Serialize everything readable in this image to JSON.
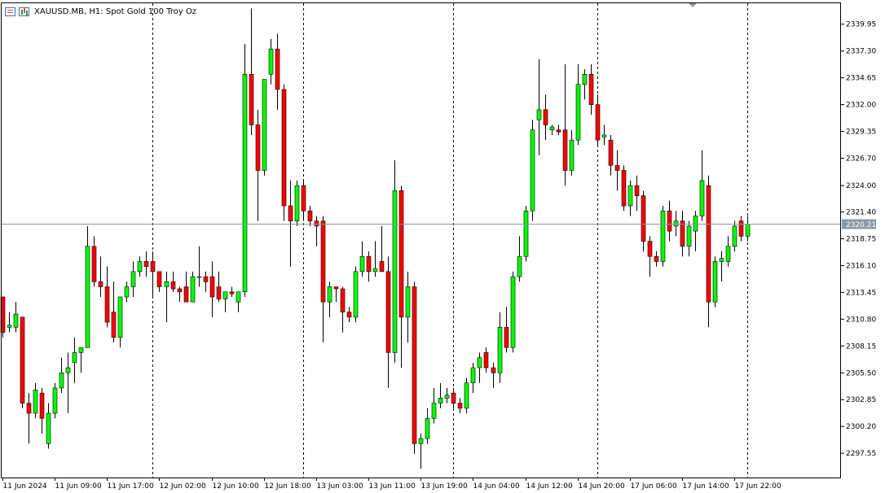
{
  "window": {
    "symbol": "XAUUSD.MB, H1:",
    "description": "Spot Gold 100 Troy Oz",
    "current_price_label": "2320.21",
    "icons": [
      "chart-menu-icon",
      "candle-bars-icon",
      "scroll-marker-icon"
    ]
  },
  "colors": {
    "bull": "#00ff00",
    "bear": "#ff0000",
    "wick": "#000000",
    "background": "#ffffff",
    "price_line": "#8a98a6",
    "price_label_bg": "#8a98a6"
  },
  "chart_data": {
    "type": "candlestick",
    "title": "",
    "xlabel": "",
    "ylabel": "",
    "ylim": [
      2295.15,
      2342.1
    ],
    "current_price": 2320.21,
    "grid": false,
    "period_separators": true,
    "y_ticks": [
      "2339.95",
      "2337.30",
      "2334.65",
      "2332.00",
      "2329.35",
      "2326.70",
      "2324.00",
      "2321.40",
      "2318.75",
      "2316.10",
      "2313.45",
      "2310.80",
      "2308.15",
      "2305.50",
      "2302.85",
      "2300.20",
      "2297.55"
    ],
    "x_ticks": [
      {
        "index": 0,
        "label": "11 Jun 2024"
      },
      {
        "index": 8,
        "label": "11 Jun 09:00"
      },
      {
        "index": 16,
        "label": "11 Jun 17:00"
      },
      {
        "index": 24,
        "label": "12 Jun 02:00"
      },
      {
        "index": 32,
        "label": "12 Jun 10:00"
      },
      {
        "index": 40,
        "label": "12 Jun 18:00"
      },
      {
        "index": 48,
        "label": "13 Jun 03:00"
      },
      {
        "index": 56,
        "label": "13 Jun 11:00"
      },
      {
        "index": 64,
        "label": "13 Jun 19:00"
      },
      {
        "index": 72,
        "label": "14 Jun 04:00"
      },
      {
        "index": 80,
        "label": "14 Jun 12:00"
      },
      {
        "index": 88,
        "label": "14 Jun 20:00"
      },
      {
        "index": 96,
        "label": "17 Jun 06:00"
      },
      {
        "index": 104,
        "label": "17 Jun 14:00"
      },
      {
        "index": 112,
        "label": "17 Jun 22:00"
      }
    ],
    "separators_at": [
      23,
      46,
      69,
      91,
      114
    ],
    "candles": [
      {
        "o": 2313.0,
        "h": 2313.0,
        "l": 2309.0,
        "c": 2309.5
      },
      {
        "o": 2310.0,
        "h": 2311.5,
        "l": 2309.5,
        "c": 2310.2
      },
      {
        "o": 2310.0,
        "h": 2312.5,
        "l": 2309.5,
        "c": 2311.3
      },
      {
        "o": 2311.0,
        "h": 2311.0,
        "l": 2302.0,
        "c": 2302.5
      },
      {
        "o": 2302.5,
        "h": 2303.5,
        "l": 2298.5,
        "c": 2301.5
      },
      {
        "o": 2301.5,
        "h": 2304.5,
        "l": 2301.0,
        "c": 2303.8
      },
      {
        "o": 2303.5,
        "h": 2304.0,
        "l": 2299.5,
        "c": 2301.0
      },
      {
        "o": 2298.5,
        "h": 2302.5,
        "l": 2298.0,
        "c": 2301.5
      },
      {
        "o": 2301.5,
        "h": 2304.5,
        "l": 2301.0,
        "c": 2304.0
      },
      {
        "o": 2304.0,
        "h": 2307.0,
        "l": 2303.5,
        "c": 2305.5
      },
      {
        "o": 2305.5,
        "h": 2307.5,
        "l": 2301.5,
        "c": 2306.0
      },
      {
        "o": 2306.5,
        "h": 2309.0,
        "l": 2304.5,
        "c": 2307.5
      },
      {
        "o": 2307.5,
        "h": 2308.0,
        "l": 2305.5,
        "c": 2308.0
      },
      {
        "o": 2308.0,
        "h": 2320.0,
        "l": 2308.0,
        "c": 2318.0
      },
      {
        "o": 2318.0,
        "h": 2319.0,
        "l": 2314.0,
        "c": 2314.5
      },
      {
        "o": 2314.5,
        "h": 2317.0,
        "l": 2313.0,
        "c": 2314.0
      },
      {
        "o": 2314.0,
        "h": 2316.0,
        "l": 2310.0,
        "c": 2310.5
      },
      {
        "o": 2311.5,
        "h": 2314.5,
        "l": 2308.5,
        "c": 2309.0
      },
      {
        "o": 2309.0,
        "h": 2313.0,
        "l": 2308.0,
        "c": 2313.0
      },
      {
        "o": 2313.0,
        "h": 2314.5,
        "l": 2312.5,
        "c": 2314.0
      },
      {
        "o": 2314.0,
        "h": 2316.5,
        "l": 2313.0,
        "c": 2315.5
      },
      {
        "o": 2315.5,
        "h": 2317.0,
        "l": 2315.0,
        "c": 2316.5
      },
      {
        "o": 2316.5,
        "h": 2317.5,
        "l": 2315.0,
        "c": 2316.0
      },
      {
        "o": 2316.5,
        "h": 2317.5,
        "l": 2313.0,
        "c": 2315.5
      },
      {
        "o": 2315.5,
        "h": 2315.5,
        "l": 2313.5,
        "c": 2314.0
      },
      {
        "o": 2314.0,
        "h": 2315.5,
        "l": 2310.5,
        "c": 2314.5
      },
      {
        "o": 2314.5,
        "h": 2315.5,
        "l": 2313.5,
        "c": 2313.8
      },
      {
        "o": 2313.8,
        "h": 2314.0,
        "l": 2312.5,
        "c": 2313.5
      },
      {
        "o": 2314.0,
        "h": 2315.5,
        "l": 2312.5,
        "c": 2312.5
      },
      {
        "o": 2312.5,
        "h": 2315.5,
        "l": 2312.5,
        "c": 2315.0
      },
      {
        "o": 2315.0,
        "h": 2318.0,
        "l": 2314.0,
        "c": 2315.0
      },
      {
        "o": 2315.0,
        "h": 2315.5,
        "l": 2313.5,
        "c": 2314.5
      },
      {
        "o": 2315.0,
        "h": 2316.5,
        "l": 2311.0,
        "c": 2313.0
      },
      {
        "o": 2314.0,
        "h": 2315.5,
        "l": 2312.5,
        "c": 2312.8
      },
      {
        "o": 2312.8,
        "h": 2313.5,
        "l": 2311.5,
        "c": 2313.5
      },
      {
        "o": 2313.5,
        "h": 2314.0,
        "l": 2313.0,
        "c": 2313.3
      },
      {
        "o": 2312.5,
        "h": 2313.5,
        "l": 2311.5,
        "c": 2313.5
      },
      {
        "o": 2313.5,
        "h": 2338.0,
        "l": 2313.0,
        "c": 2335.0
      },
      {
        "o": 2335.0,
        "h": 2341.5,
        "l": 2329.0,
        "c": 2330.0
      },
      {
        "o": 2330.0,
        "h": 2331.5,
        "l": 2320.5,
        "c": 2325.5
      },
      {
        "o": 2325.5,
        "h": 2334.5,
        "l": 2325.0,
        "c": 2334.5
      },
      {
        "o": 2335.0,
        "h": 2338.5,
        "l": 2334.0,
        "c": 2337.5
      },
      {
        "o": 2337.5,
        "h": 2339.0,
        "l": 2331.5,
        "c": 2333.5
      },
      {
        "o": 2333.5,
        "h": 2334.0,
        "l": 2320.5,
        "c": 2322.0
      },
      {
        "o": 2322.0,
        "h": 2324.5,
        "l": 2316.0,
        "c": 2320.5
      },
      {
        "o": 2320.5,
        "h": 2324.5,
        "l": 2320.0,
        "c": 2324.0
      },
      {
        "o": 2324.0,
        "h": 2324.5,
        "l": 2320.5,
        "c": 2321.5
      },
      {
        "o": 2321.5,
        "h": 2322.0,
        "l": 2320.0,
        "c": 2320.5
      },
      {
        "o": 2320.5,
        "h": 2321.0,
        "l": 2318.0,
        "c": 2320.0
      },
      {
        "o": 2320.5,
        "h": 2321.0,
        "l": 2308.5,
        "c": 2312.5
      },
      {
        "o": 2312.5,
        "h": 2314.5,
        "l": 2311.0,
        "c": 2314.0
      },
      {
        "o": 2314.0,
        "h": 2314.0,
        "l": 2312.5,
        "c": 2313.8
      },
      {
        "o": 2313.8,
        "h": 2314.0,
        "l": 2309.5,
        "c": 2311.5
      },
      {
        "o": 2311.5,
        "h": 2312.0,
        "l": 2310.5,
        "c": 2311.0
      },
      {
        "o": 2311.0,
        "h": 2316.0,
        "l": 2310.5,
        "c": 2315.5
      },
      {
        "o": 2315.5,
        "h": 2318.5,
        "l": 2315.0,
        "c": 2317.0
      },
      {
        "o": 2317.0,
        "h": 2317.5,
        "l": 2314.5,
        "c": 2315.5
      },
      {
        "o": 2315.5,
        "h": 2318.5,
        "l": 2315.0,
        "c": 2315.8
      },
      {
        "o": 2316.5,
        "h": 2320.0,
        "l": 2315.5,
        "c": 2315.5
      },
      {
        "o": 2315.5,
        "h": 2317.0,
        "l": 2304.0,
        "c": 2307.5
      },
      {
        "o": 2307.5,
        "h": 2326.5,
        "l": 2306.5,
        "c": 2323.5
      },
      {
        "o": 2323.5,
        "h": 2324.0,
        "l": 2306.0,
        "c": 2311.0
      },
      {
        "o": 2311.0,
        "h": 2315.5,
        "l": 2308.5,
        "c": 2314.0
      },
      {
        "o": 2314.0,
        "h": 2314.5,
        "l": 2297.5,
        "c": 2298.5
      },
      {
        "o": 2298.5,
        "h": 2299.5,
        "l": 2296.0,
        "c": 2299.0
      },
      {
        "o": 2299.0,
        "h": 2302.0,
        "l": 2298.5,
        "c": 2301.0
      },
      {
        "o": 2301.0,
        "h": 2304.0,
        "l": 2300.5,
        "c": 2302.5
      },
      {
        "o": 2302.5,
        "h": 2304.5,
        "l": 2302.0,
        "c": 2303.0
      },
      {
        "o": 2303.0,
        "h": 2304.0,
        "l": 2302.5,
        "c": 2303.3
      },
      {
        "o": 2303.5,
        "h": 2304.0,
        "l": 2302.0,
        "c": 2302.5
      },
      {
        "o": 2302.5,
        "h": 2303.0,
        "l": 2301.5,
        "c": 2302.0
      },
      {
        "o": 2302.0,
        "h": 2305.0,
        "l": 2301.5,
        "c": 2304.5
      },
      {
        "o": 2304.5,
        "h": 2306.5,
        "l": 2303.5,
        "c": 2306.0
      },
      {
        "o": 2306.0,
        "h": 2307.5,
        "l": 2304.5,
        "c": 2307.0
      },
      {
        "o": 2307.5,
        "h": 2308.0,
        "l": 2305.5,
        "c": 2306.0
      },
      {
        "o": 2306.0,
        "h": 2306.5,
        "l": 2304.0,
        "c": 2305.5
      },
      {
        "o": 2305.5,
        "h": 2311.5,
        "l": 2304.5,
        "c": 2310.0
      },
      {
        "o": 2310.0,
        "h": 2312.0,
        "l": 2307.5,
        "c": 2308.0
      },
      {
        "o": 2308.0,
        "h": 2315.5,
        "l": 2307.5,
        "c": 2315.0
      },
      {
        "o": 2315.0,
        "h": 2319.0,
        "l": 2314.5,
        "c": 2317.0
      },
      {
        "o": 2317.0,
        "h": 2322.0,
        "l": 2316.5,
        "c": 2321.5
      },
      {
        "o": 2321.5,
        "h": 2330.5,
        "l": 2320.5,
        "c": 2329.5
      },
      {
        "o": 2330.5,
        "h": 2336.5,
        "l": 2327.0,
        "c": 2331.5
      },
      {
        "o": 2331.5,
        "h": 2333.0,
        "l": 2328.5,
        "c": 2330.0
      },
      {
        "o": 2329.5,
        "h": 2330.0,
        "l": 2329.0,
        "c": 2329.8
      },
      {
        "o": 2329.5,
        "h": 2330.0,
        "l": 2329.0,
        "c": 2329.3
      },
      {
        "o": 2329.5,
        "h": 2336.0,
        "l": 2324.0,
        "c": 2325.5
      },
      {
        "o": 2325.5,
        "h": 2329.5,
        "l": 2325.0,
        "c": 2328.5
      },
      {
        "o": 2328.5,
        "h": 2336.0,
        "l": 2328.0,
        "c": 2334.0
      },
      {
        "o": 2334.0,
        "h": 2335.5,
        "l": 2332.5,
        "c": 2335.0
      },
      {
        "o": 2335.0,
        "h": 2336.0,
        "l": 2331.0,
        "c": 2332.0
      },
      {
        "o": 2332.0,
        "h": 2333.0,
        "l": 2328.0,
        "c": 2328.5
      },
      {
        "o": 2328.8,
        "h": 2330.0,
        "l": 2328.0,
        "c": 2329.0
      },
      {
        "o": 2328.5,
        "h": 2329.0,
        "l": 2325.0,
        "c": 2326.0
      },
      {
        "o": 2326.0,
        "h": 2327.5,
        "l": 2323.5,
        "c": 2325.5
      },
      {
        "o": 2325.5,
        "h": 2326.0,
        "l": 2321.5,
        "c": 2322.0
      },
      {
        "o": 2322.0,
        "h": 2324.5,
        "l": 2321.0,
        "c": 2324.0
      },
      {
        "o": 2324.0,
        "h": 2325.0,
        "l": 2321.5,
        "c": 2323.0
      },
      {
        "o": 2323.0,
        "h": 2323.5,
        "l": 2317.5,
        "c": 2318.5
      },
      {
        "o": 2318.5,
        "h": 2319.0,
        "l": 2315.0,
        "c": 2317.0
      },
      {
        "o": 2317.0,
        "h": 2317.5,
        "l": 2316.0,
        "c": 2316.5
      },
      {
        "o": 2316.5,
        "h": 2322.0,
        "l": 2316.0,
        "c": 2321.5
      },
      {
        "o": 2321.5,
        "h": 2322.5,
        "l": 2318.5,
        "c": 2319.5
      },
      {
        "o": 2320.0,
        "h": 2321.5,
        "l": 2319.0,
        "c": 2320.5
      },
      {
        "o": 2320.5,
        "h": 2321.5,
        "l": 2317.0,
        "c": 2318.0
      },
      {
        "o": 2318.0,
        "h": 2320.5,
        "l": 2317.0,
        "c": 2320.0
      },
      {
        "o": 2319.5,
        "h": 2321.5,
        "l": 2317.5,
        "c": 2321.0
      },
      {
        "o": 2321.0,
        "h": 2327.5,
        "l": 2320.5,
        "c": 2324.5
      },
      {
        "o": 2324.0,
        "h": 2325.0,
        "l": 2310.0,
        "c": 2312.5
      },
      {
        "o": 2312.5,
        "h": 2317.0,
        "l": 2312.0,
        "c": 2316.5
      },
      {
        "o": 2316.5,
        "h": 2317.5,
        "l": 2314.5,
        "c": 2316.8
      },
      {
        "o": 2316.5,
        "h": 2319.0,
        "l": 2316.0,
        "c": 2318.0
      },
      {
        "o": 2318.0,
        "h": 2320.5,
        "l": 2317.5,
        "c": 2320.0
      },
      {
        "o": 2320.5,
        "h": 2321.0,
        "l": 2318.5,
        "c": 2319.0
      },
      {
        "o": 2319.0,
        "h": 2321.0,
        "l": 2318.5,
        "c": 2320.2
      }
    ]
  }
}
